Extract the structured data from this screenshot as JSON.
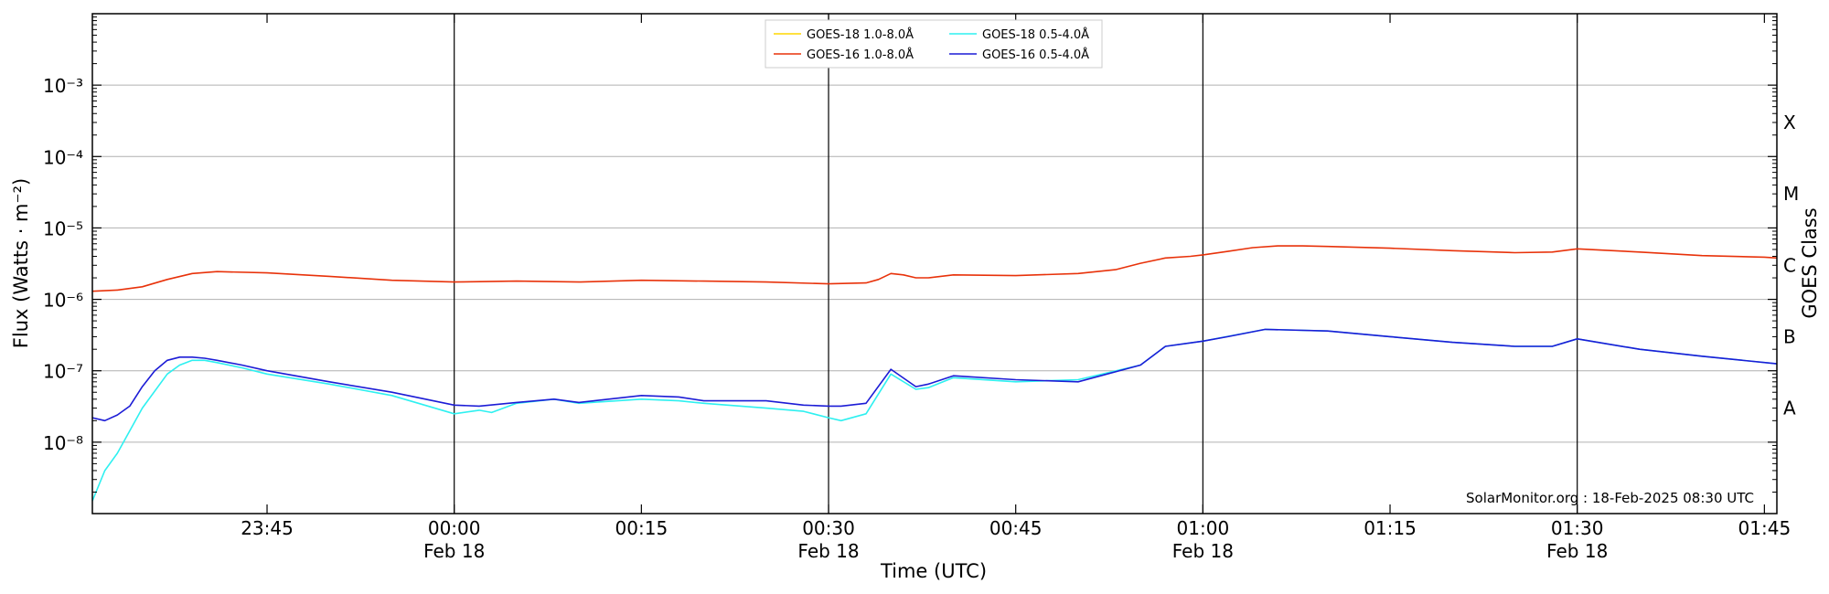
{
  "chart_data": {
    "type": "line",
    "xlabel": "Time (UTC)",
    "ylabel": "Flux (Watts · m⁻²)",
    "ylabel_right": "GOES Class",
    "yscale": "log",
    "ylim": [
      1e-09,
      0.01
    ],
    "xlim": [
      "23:31",
      "01:46"
    ],
    "grid": "horizontal at decades",
    "legend_position": "top-center",
    "y_tick_labels": [
      "10⁻⁸",
      "10⁻⁷",
      "10⁻⁶",
      "10⁻⁵",
      "10⁻⁴",
      "10⁻³"
    ],
    "y_tick_values": [
      1e-08,
      1e-07,
      1e-06,
      1e-05,
      0.0001,
      0.001
    ],
    "x_ticks": [
      {
        "t": "23:45",
        "label": "23:45",
        "sub": ""
      },
      {
        "t": "00:00",
        "label": "00:00",
        "sub": "Feb 18"
      },
      {
        "t": "00:15",
        "label": "00:15",
        "sub": ""
      },
      {
        "t": "00:30",
        "label": "00:30",
        "sub": "Feb 18"
      },
      {
        "t": "00:45",
        "label": "00:45",
        "sub": ""
      },
      {
        "t": "01:00",
        "label": "01:00",
        "sub": "Feb 18"
      },
      {
        "t": "01:15",
        "label": "01:15",
        "sub": ""
      },
      {
        "t": "01:30",
        "label": "01:30",
        "sub": "Feb 18"
      },
      {
        "t": "01:45",
        "label": "01:45",
        "sub": ""
      }
    ],
    "vertical_lines": [
      "00:00",
      "00:30",
      "01:00",
      "01:30"
    ],
    "goes_classes": [
      {
        "label": "A",
        "flux": 3e-08
      },
      {
        "label": "B",
        "flux": 3e-07
      },
      {
        "label": "C",
        "flux": 3e-06
      },
      {
        "label": "M",
        "flux": 3e-05
      },
      {
        "label": "X",
        "flux": 0.0003
      }
    ],
    "series": [
      {
        "name": "GOES-18 1.0-8.0Å",
        "color": "#ffd700",
        "x": [],
        "y": []
      },
      {
        "name": "GOES-16 1.0-8.0Å",
        "color": "#e8320a",
        "x": [
          "23:31",
          "23:33",
          "23:35",
          "23:37",
          "23:39",
          "23:41",
          "23:45",
          "23:50",
          "23:55",
          "00:00",
          "00:05",
          "00:10",
          "00:15",
          "00:20",
          "00:25",
          "00:30",
          "00:33",
          "00:34",
          "00:35",
          "00:36",
          "00:37",
          "00:38",
          "00:40",
          "00:45",
          "00:50",
          "00:53",
          "00:55",
          "00:57",
          "00:59",
          "01:00",
          "01:02",
          "01:04",
          "01:06",
          "01:08",
          "01:10",
          "01:15",
          "01:20",
          "01:25",
          "01:28",
          "01:30",
          "01:35",
          "01:40",
          "01:45",
          "01:46"
        ],
        "y": [
          1.3e-06,
          1.35e-06,
          1.5e-06,
          1.9e-06,
          2.3e-06,
          2.45e-06,
          2.35e-06,
          2.1e-06,
          1.85e-06,
          1.75e-06,
          1.8e-06,
          1.75e-06,
          1.85e-06,
          1.8e-06,
          1.75e-06,
          1.65e-06,
          1.7e-06,
          1.9e-06,
          2.3e-06,
          2.2e-06,
          2e-06,
          2e-06,
          2.2e-06,
          2.15e-06,
          2.3e-06,
          2.6e-06,
          3.2e-06,
          3.8e-06,
          4e-06,
          4.2e-06,
          4.7e-06,
          5.3e-06,
          5.6e-06,
          5.6e-06,
          5.5e-06,
          5.2e-06,
          4.8e-06,
          4.5e-06,
          4.6e-06,
          5.1e-06,
          4.6e-06,
          4.1e-06,
          3.9e-06,
          3.8e-06
        ]
      },
      {
        "name": "GOES-18 0.5-4.0Å",
        "color": "#2ef0f0",
        "x": [
          "23:31",
          "23:32",
          "23:33",
          "23:35",
          "23:37",
          "23:38",
          "23:39",
          "23:40",
          "23:41",
          "23:43",
          "23:45",
          "23:50",
          "23:55",
          "00:00",
          "00:02",
          "00:03",
          "00:05",
          "00:08",
          "00:10",
          "00:15",
          "00:18",
          "00:20",
          "00:25",
          "00:28",
          "00:30",
          "00:31",
          "00:33",
          "00:35",
          "00:37",
          "00:38",
          "00:40",
          "00:45",
          "00:50",
          "00:55",
          "00:57",
          "01:00",
          "01:05",
          "01:10",
          "01:15",
          "01:20",
          "01:25",
          "01:28",
          "01:30",
          "01:35",
          "01:40",
          "01:46"
        ],
        "y": [
          1.5e-09,
          4e-09,
          7e-09,
          3e-08,
          9e-08,
          1.2e-07,
          1.4e-07,
          1.4e-07,
          1.3e-07,
          1.1e-07,
          9e-08,
          6.5e-08,
          4.5e-08,
          2.5e-08,
          2.8e-08,
          2.6e-08,
          3.5e-08,
          4e-08,
          3.5e-08,
          4e-08,
          3.8e-08,
          3.5e-08,
          3e-08,
          2.7e-08,
          2.2e-08,
          2e-08,
          2.5e-08,
          9e-08,
          5.5e-08,
          5.8e-08,
          8e-08,
          7e-08,
          7.5e-08,
          1.2e-07,
          2.2e-07,
          2.6e-07,
          3.8e-07,
          3.6e-07,
          3e-07,
          2.5e-07,
          2.2e-07,
          2.2e-07,
          2.8e-07,
          2e-07,
          1.6e-07,
          1.25e-07
        ]
      },
      {
        "name": "GOES-16 0.5-4.0Å",
        "color": "#1c1cd6",
        "x": [
          "23:31",
          "23:32",
          "23:33",
          "23:34",
          "23:35",
          "23:36",
          "23:37",
          "23:38",
          "23:39",
          "23:40",
          "23:41",
          "23:43",
          "23:45",
          "23:50",
          "23:55",
          "00:00",
          "00:02",
          "00:05",
          "00:08",
          "00:10",
          "00:15",
          "00:18",
          "00:20",
          "00:25",
          "00:28",
          "00:30",
          "00:31",
          "00:33",
          "00:35",
          "00:37",
          "00:38",
          "00:40",
          "00:45",
          "00:50",
          "00:55",
          "00:57",
          "01:00",
          "01:02",
          "01:05",
          "01:10",
          "01:15",
          "01:20",
          "01:25",
          "01:28",
          "01:30",
          "01:35",
          "01:40",
          "01:46"
        ],
        "y": [
          2.2e-08,
          2e-08,
          2.4e-08,
          3.2e-08,
          6e-08,
          1e-07,
          1.4e-07,
          1.55e-07,
          1.55e-07,
          1.5e-07,
          1.4e-07,
          1.2e-07,
          1e-07,
          7e-08,
          5e-08,
          3.3e-08,
          3.2e-08,
          3.6e-08,
          4e-08,
          3.6e-08,
          4.5e-08,
          4.3e-08,
          3.8e-08,
          3.8e-08,
          3.3e-08,
          3.2e-08,
          3.2e-08,
          3.5e-08,
          1.05e-07,
          6e-08,
          6.5e-08,
          8.5e-08,
          7.5e-08,
          7e-08,
          1.2e-07,
          2.2e-07,
          2.6e-07,
          3e-07,
          3.8e-07,
          3.6e-07,
          3e-07,
          2.5e-07,
          2.2e-07,
          2.2e-07,
          2.8e-07,
          2e-07,
          1.6e-07,
          1.25e-07
        ]
      }
    ],
    "watermark": "SolarMonitor.org : 18-Feb-2025 08:30 UTC"
  }
}
